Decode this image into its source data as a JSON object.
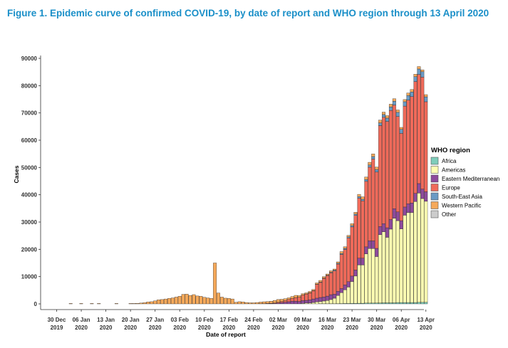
{
  "figure": {
    "title": "Figure 1. Epidemic curve of confirmed COVID-19, by date of report and WHO region through 13 April 2020"
  },
  "chart_data": {
    "type": "bar",
    "stacked": true,
    "xlabel": "Date of report",
    "ylabel": "Cases",
    "ylim": [
      0,
      90000
    ],
    "yticks": [
      0,
      10000,
      20000,
      30000,
      40000,
      50000,
      60000,
      70000,
      80000,
      90000
    ],
    "grid": false,
    "x_start": "2019-12-30",
    "xtick_labels": [
      {
        "day": "30 Dec",
        "year": "2019"
      },
      {
        "day": "06 Jan",
        "year": "2020"
      },
      {
        "day": "13 Jan",
        "year": "2020"
      },
      {
        "day": "20 Jan",
        "year": "2020"
      },
      {
        "day": "27 Jan",
        "year": "2020"
      },
      {
        "day": "03 Feb",
        "year": "2020"
      },
      {
        "day": "10 Feb",
        "year": "2020"
      },
      {
        "day": "17 Feb",
        "year": "2020"
      },
      {
        "day": "24 Feb",
        "year": "2020"
      },
      {
        "day": "02 Mar",
        "year": "2020"
      },
      {
        "day": "09 Mar",
        "year": "2020"
      },
      {
        "day": "16 Mar",
        "year": "2020"
      },
      {
        "day": "23 Mar",
        "year": "2020"
      },
      {
        "day": "30 Mar",
        "year": "2020"
      },
      {
        "day": "06 Apr",
        "year": "2020"
      },
      {
        "day": "13 Apr",
        "year": "2020"
      }
    ],
    "legend": {
      "title": "WHO region",
      "placement": "right",
      "entries": [
        {
          "name": "Africa",
          "color": "#7fcdbb"
        },
        {
          "name": "Americas",
          "color": "#ffffb2"
        },
        {
          "name": "Eastern Mediterranean",
          "color": "#8e4a9c"
        },
        {
          "name": "Europe",
          "color": "#ef6a5a"
        },
        {
          "name": "South-East Asia",
          "color": "#6a9ac4"
        },
        {
          "name": "Western Pacific",
          "color": "#f6a95a"
        },
        {
          "name": "Other",
          "color": "#cccccc"
        }
      ]
    },
    "x": [
      "2020-01-03",
      "2020-01-06",
      "2020-01-09",
      "2020-01-11",
      "2020-01-16",
      "2020-01-20",
      "2020-01-21",
      "2020-01-22",
      "2020-01-23",
      "2020-01-24",
      "2020-01-25",
      "2020-01-26",
      "2020-01-27",
      "2020-01-28",
      "2020-01-29",
      "2020-01-30",
      "2020-01-31",
      "2020-02-01",
      "2020-02-02",
      "2020-02-03",
      "2020-02-04",
      "2020-02-05",
      "2020-02-06",
      "2020-02-07",
      "2020-02-08",
      "2020-02-09",
      "2020-02-10",
      "2020-02-11",
      "2020-02-12",
      "2020-02-13",
      "2020-02-14",
      "2020-02-15",
      "2020-02-16",
      "2020-02-17",
      "2020-02-18",
      "2020-02-19",
      "2020-02-20",
      "2020-02-21",
      "2020-02-22",
      "2020-02-23",
      "2020-02-24",
      "2020-02-25",
      "2020-02-26",
      "2020-02-27",
      "2020-02-28",
      "2020-02-29",
      "2020-03-01",
      "2020-03-02",
      "2020-03-03",
      "2020-03-04",
      "2020-03-05",
      "2020-03-06",
      "2020-03-07",
      "2020-03-08",
      "2020-03-09",
      "2020-03-10",
      "2020-03-11",
      "2020-03-12",
      "2020-03-13",
      "2020-03-14",
      "2020-03-15",
      "2020-03-16",
      "2020-03-17",
      "2020-03-18",
      "2020-03-19",
      "2020-03-20",
      "2020-03-21",
      "2020-03-22",
      "2020-03-23",
      "2020-03-24",
      "2020-03-25",
      "2020-03-26",
      "2020-03-27",
      "2020-03-28",
      "2020-03-29",
      "2020-03-30",
      "2020-03-31",
      "2020-04-01",
      "2020-04-02",
      "2020-04-03",
      "2020-04-04",
      "2020-04-05",
      "2020-04-06",
      "2020-04-07",
      "2020-04-08",
      "2020-04-09",
      "2020-04-10",
      "2020-04-11",
      "2020-04-12",
      "2020-04-13"
    ],
    "series": [
      {
        "name": "Africa",
        "values": [
          0,
          0,
          0,
          0,
          0,
          0,
          0,
          0,
          0,
          0,
          0,
          0,
          0,
          0,
          0,
          0,
          0,
          0,
          0,
          0,
          0,
          0,
          0,
          0,
          0,
          0,
          0,
          0,
          0,
          0,
          0,
          0,
          0,
          0,
          0,
          0,
          0,
          0,
          0,
          0,
          0,
          0,
          0,
          0,
          0,
          0,
          0,
          0,
          0,
          0,
          0,
          0,
          0,
          0,
          0,
          0,
          0,
          0,
          0,
          50,
          50,
          50,
          80,
          80,
          100,
          120,
          150,
          150,
          200,
          200,
          250,
          250,
          300,
          300,
          300,
          350,
          350,
          400,
          400,
          400,
          400,
          500,
          500,
          500,
          500,
          500,
          500,
          600,
          600,
          600
        ]
      },
      {
        "name": "Americas",
        "values": [
          0,
          0,
          0,
          0,
          0,
          0,
          0,
          0,
          0,
          0,
          0,
          0,
          0,
          0,
          0,
          0,
          0,
          0,
          0,
          0,
          0,
          0,
          0,
          0,
          0,
          0,
          0,
          0,
          0,
          0,
          0,
          0,
          0,
          0,
          0,
          0,
          0,
          0,
          0,
          0,
          0,
          0,
          0,
          0,
          0,
          0,
          0,
          0,
          0,
          0,
          0,
          0,
          0,
          0,
          200,
          300,
          300,
          500,
          700,
          800,
          1000,
          1200,
          1500,
          2000,
          3000,
          4000,
          5000,
          6000,
          8000,
          10000,
          14000,
          14000,
          18000,
          20000,
          20000,
          17000,
          25000,
          26000,
          24000,
          27000,
          31000,
          30000,
          27000,
          32000,
          33000,
          33000,
          37000,
          40000,
          38000,
          37000
        ]
      },
      {
        "name": "Eastern Mediterranean",
        "values": [
          0,
          0,
          0,
          0,
          0,
          0,
          0,
          0,
          0,
          0,
          0,
          0,
          0,
          0,
          0,
          0,
          0,
          0,
          0,
          0,
          0,
          0,
          0,
          0,
          0,
          0,
          0,
          0,
          0,
          0,
          0,
          0,
          0,
          0,
          0,
          0,
          0,
          0,
          0,
          0,
          0,
          0,
          50,
          50,
          100,
          100,
          150,
          300,
          500,
          600,
          800,
          1000,
          1000,
          900,
          1000,
          1000,
          1200,
          1300,
          1400,
          1500,
          1500,
          1600,
          1800,
          1500,
          1500,
          1500,
          1800,
          2000,
          2000,
          2200,
          2500,
          2500,
          2600,
          2800,
          2800,
          3000,
          3000,
          3000,
          3500,
          3500,
          3500,
          3200,
          3000,
          3000,
          3200,
          3500,
          3000,
          3500,
          3500,
          3500
        ]
      },
      {
        "name": "Europe",
        "values": [
          0,
          0,
          0,
          0,
          0,
          0,
          0,
          0,
          0,
          0,
          0,
          0,
          0,
          0,
          0,
          0,
          0,
          0,
          0,
          0,
          0,
          0,
          0,
          0,
          0,
          0,
          0,
          0,
          0,
          0,
          0,
          0,
          0,
          0,
          0,
          0,
          0,
          0,
          0,
          0,
          0,
          0,
          10,
          30,
          50,
          100,
          200,
          300,
          400,
          600,
          800,
          1000,
          1300,
          1500,
          2000,
          2300,
          2500,
          3000,
          5000,
          5500,
          6800,
          7500,
          8000,
          8500,
          10000,
          12500,
          13000,
          16000,
          18000,
          20000,
          22000,
          21000,
          24000,
          27000,
          30000,
          28000,
          37000,
          39000,
          39000,
          40000,
          38000,
          35000,
          32000,
          37000,
          38000,
          39000,
          41000,
          40000,
          41000,
          33000
        ]
      },
      {
        "name": "South-East Asia",
        "values": [
          0,
          0,
          0,
          0,
          0,
          0,
          0,
          0,
          0,
          0,
          0,
          0,
          0,
          0,
          0,
          0,
          0,
          0,
          0,
          0,
          0,
          0,
          0,
          0,
          0,
          0,
          0,
          0,
          0,
          0,
          0,
          0,
          0,
          0,
          0,
          0,
          0,
          0,
          0,
          0,
          0,
          0,
          0,
          0,
          0,
          0,
          0,
          0,
          0,
          0,
          20,
          20,
          30,
          50,
          50,
          50,
          80,
          100,
          100,
          150,
          150,
          200,
          250,
          300,
          300,
          350,
          400,
          450,
          500,
          500,
          600,
          600,
          700,
          800,
          900,
          900,
          1000,
          1000,
          1200,
          1300,
          1400,
          1500,
          1500,
          1600,
          1700,
          1700,
          1800,
          2000,
          2000,
          1800
        ]
      },
      {
        "name": "Western Pacific",
        "values": [
          35,
          60,
          30,
          30,
          30,
          50,
          100,
          200,
          300,
          450,
          700,
          800,
          1100,
          1500,
          1600,
          1800,
          2000,
          2200,
          2500,
          2800,
          3500,
          3600,
          3100,
          3400,
          2900,
          2800,
          2400,
          2200,
          2000,
          15000,
          4000,
          2500,
          2100,
          2000,
          1800,
          600,
          800,
          700,
          500,
          400,
          400,
          500,
          600,
          700,
          700,
          800,
          900,
          1000,
          800,
          700,
          600,
          700,
          800,
          600,
          500,
          400,
          500,
          400,
          500,
          600,
          500,
          400,
          500,
          400,
          500,
          700,
          600,
          500,
          700,
          700,
          800,
          900,
          900,
          1000,
          1000,
          900,
          1000,
          900,
          900,
          1000,
          900,
          900,
          700,
          800,
          900,
          900,
          900,
          900,
          700,
          800
        ]
      },
      {
        "name": "Other",
        "values": [
          0,
          0,
          0,
          0,
          0,
          0,
          0,
          0,
          0,
          0,
          0,
          0,
          0,
          0,
          0,
          0,
          0,
          0,
          0,
          0,
          0,
          0,
          0,
          0,
          0,
          0,
          0,
          0,
          0,
          0,
          0,
          0,
          0,
          0,
          0,
          0,
          0,
          0,
          0,
          0,
          0,
          0,
          0,
          0,
          0,
          0,
          0,
          0,
          0,
          0,
          0,
          0,
          0,
          0,
          0,
          0,
          0,
          0,
          0,
          0,
          0,
          0,
          0,
          0,
          0,
          0,
          0,
          0,
          0,
          0,
          0,
          0,
          0,
          0,
          0,
          0,
          0,
          0,
          0,
          0,
          0,
          0,
          0,
          0,
          0,
          0,
          0,
          0,
          0,
          0
        ]
      }
    ]
  }
}
